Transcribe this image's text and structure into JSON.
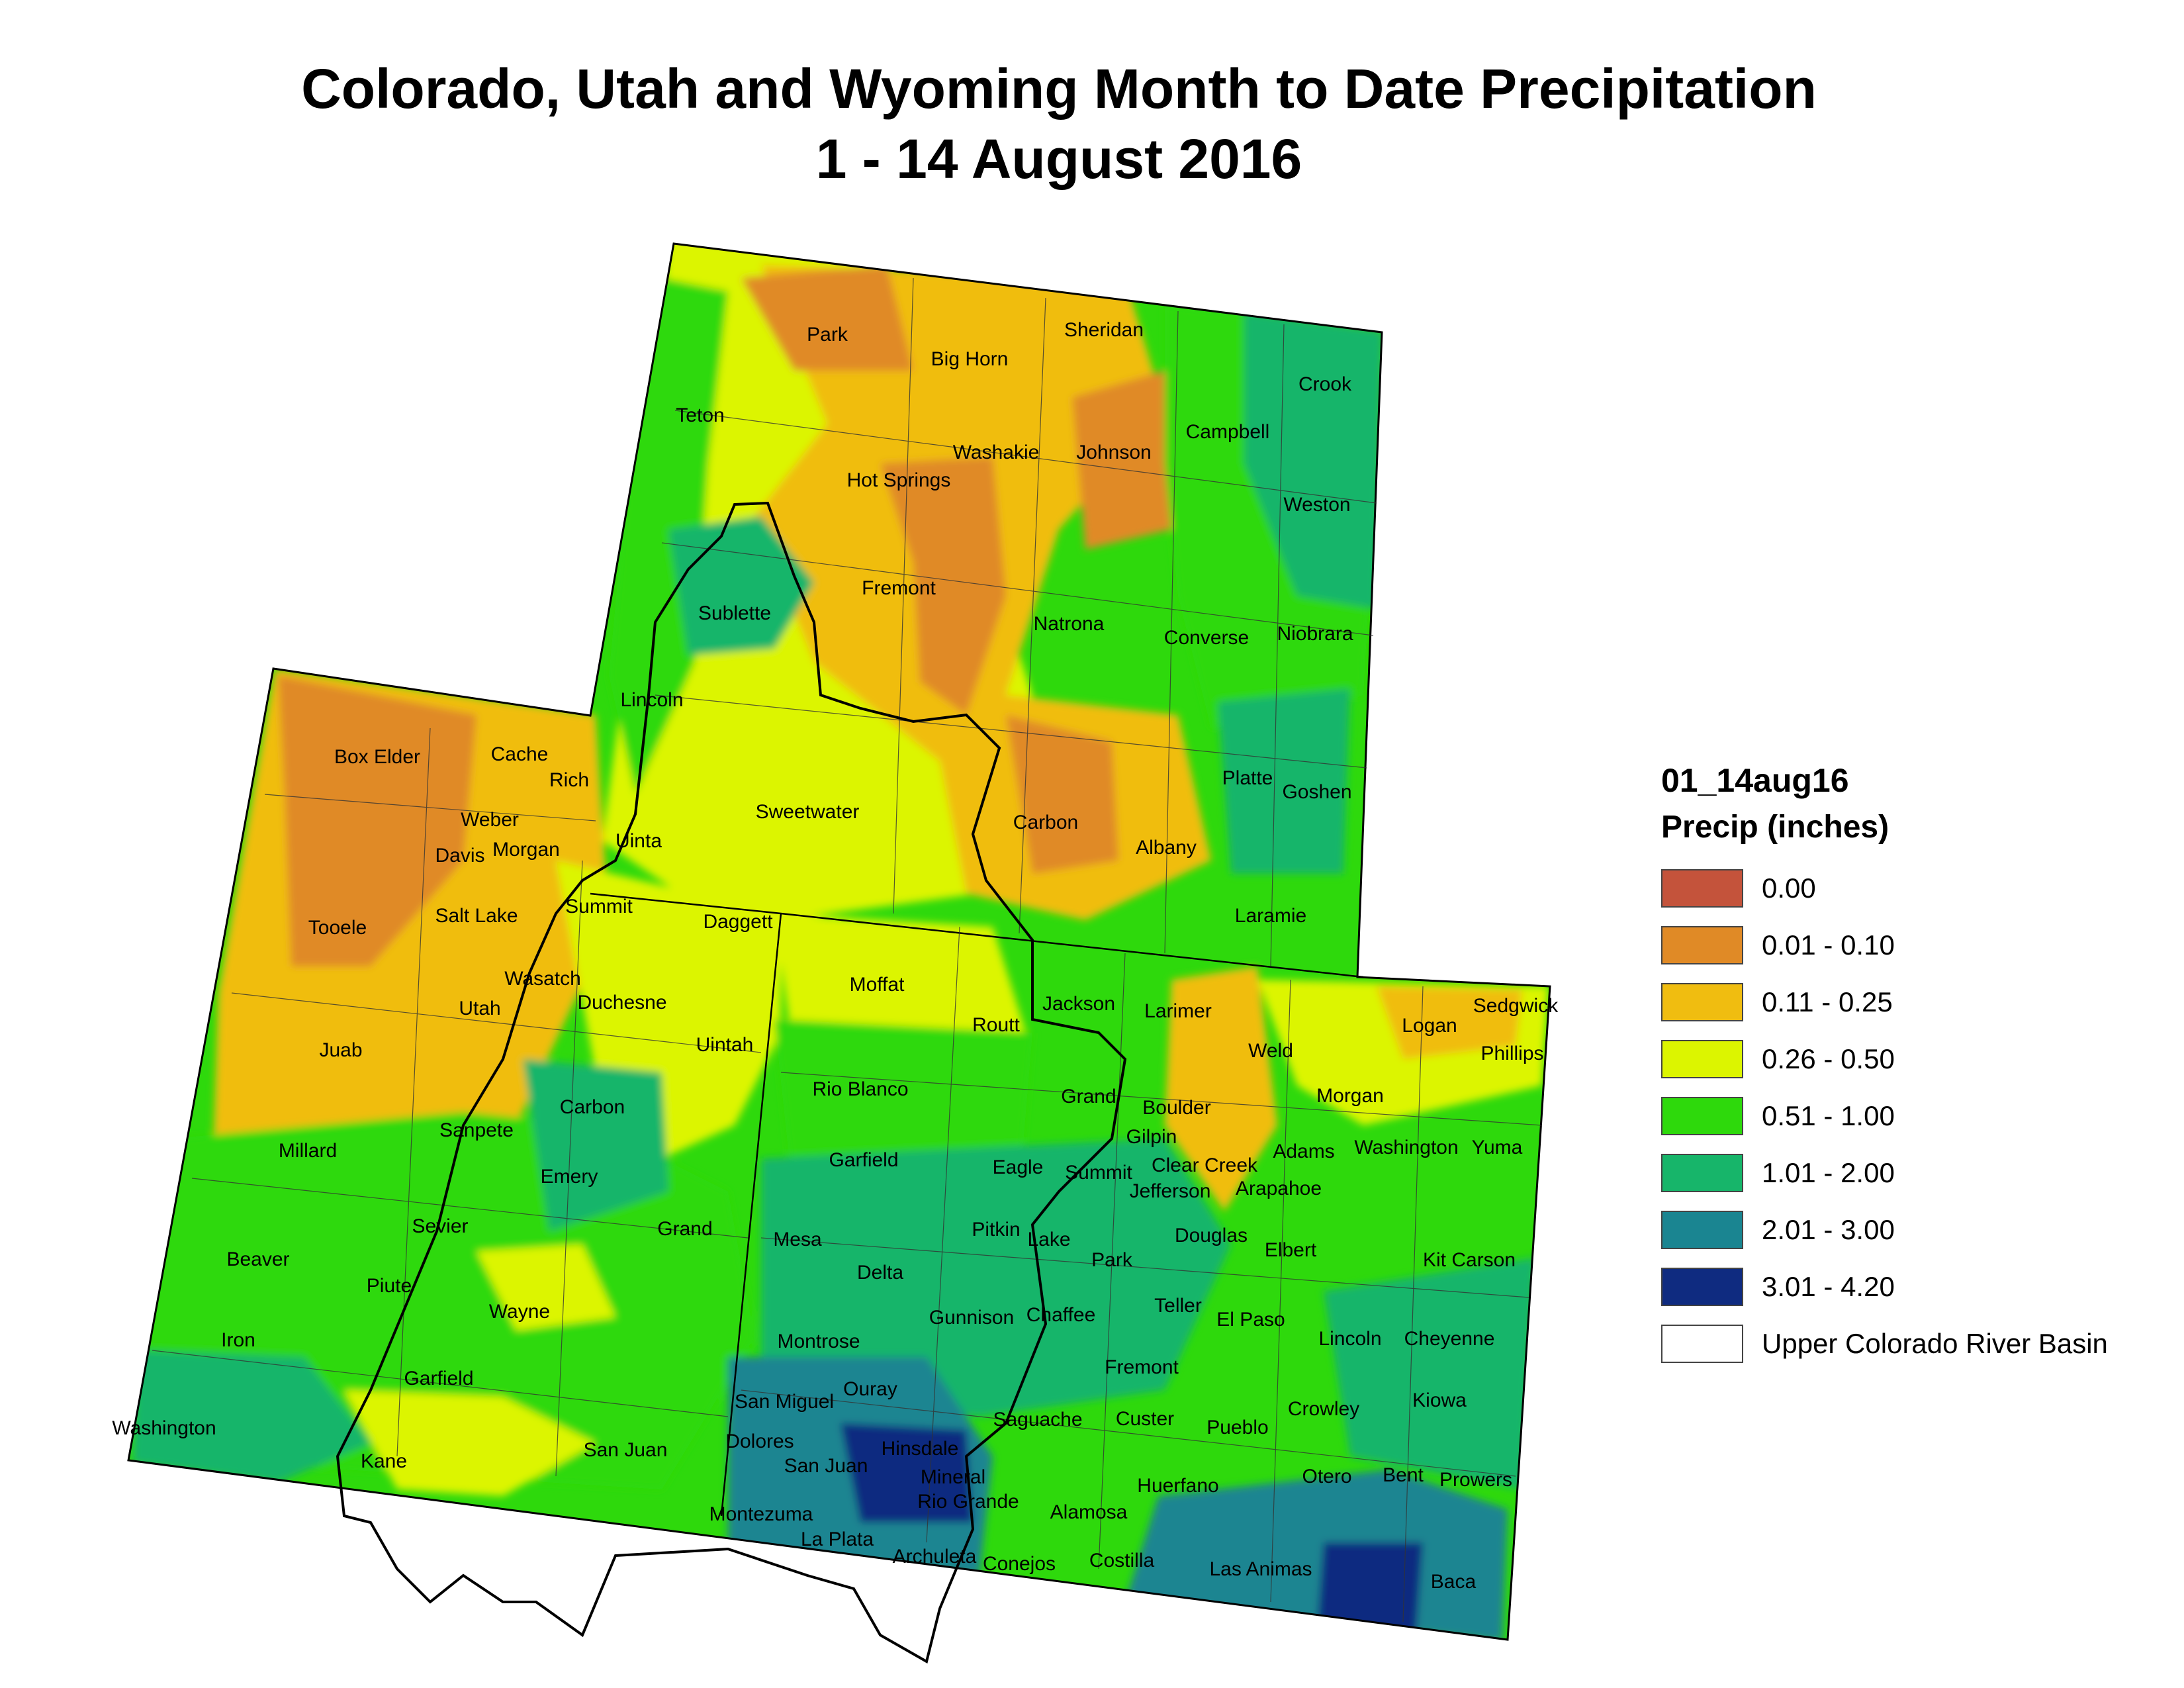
{
  "title": {
    "line1": "Colorado, Utah and Wyoming Month to Date Precipitation",
    "line2": "1 - 14 August 2016"
  },
  "legend": {
    "heading": "01_14aug16",
    "subheading": "Precip (inches)",
    "classes": [
      {
        "label": "0.00",
        "color": "#c4533b"
      },
      {
        "label": "0.01 - 0.10",
        "color": "#e08a26"
      },
      {
        "label": "0.11 - 0.25",
        "color": "#f0bd10"
      },
      {
        "label": "0.26 - 0.50",
        "color": "#dcf500"
      },
      {
        "label": "0.51 - 1.00",
        "color": "#2ed90c"
      },
      {
        "label": "1.01 - 2.00",
        "color": "#17b56a"
      },
      {
        "label": "2.01 - 3.00",
        "color": "#1a8591"
      },
      {
        "label": "3.01 - 4.20",
        "color": "#0f2b80"
      },
      {
        "label": "Upper Colorado River Basin",
        "color": "#ffffff"
      }
    ]
  },
  "counties": {
    "wyoming": [
      "Park",
      "Big Horn",
      "Sheridan",
      "Crook",
      "Teton",
      "Campbell",
      "Washakie",
      "Johnson",
      "Hot Springs",
      "Weston",
      "Fremont",
      "Sublette",
      "Natrona",
      "Converse",
      "Niobrara",
      "Lincoln",
      "Sweetwater",
      "Carbon",
      "Albany",
      "Platte",
      "Goshen",
      "Uinta",
      "Laramie"
    ],
    "utah": [
      "Box Elder",
      "Cache",
      "Rich",
      "Weber",
      "Davis",
      "Morgan",
      "Tooele",
      "Salt Lake",
      "Summit",
      "Daggett",
      "Wasatch",
      "Utah",
      "Duchesne",
      "Uintah",
      "Juab",
      "Carbon",
      "Millard",
      "Sanpete",
      "Emery",
      "Sevier",
      "Grand",
      "Beaver",
      "Piute",
      "Wayne",
      "Iron",
      "Garfield",
      "Washington",
      "Kane",
      "San Juan"
    ],
    "colorado": [
      "Moffat",
      "Jackson",
      "Larimer",
      "Logan",
      "Sedgwick",
      "Phillips",
      "Routt",
      "Weld",
      "Rio Blanco",
      "Grand",
      "Boulder",
      "Morgan",
      "Gilpin",
      "Adams",
      "Washington",
      "Yuma",
      "Garfield",
      "Eagle",
      "Summit",
      "Clear Creek",
      "Jefferson",
      "Arapahoe",
      "Pitkin",
      "Lake",
      "Mesa",
      "Douglas",
      "Elbert",
      "Park",
      "Kit Carson",
      "Delta",
      "Teller",
      "Gunnison",
      "Chaffee",
      "El Paso",
      "Lincoln",
      "Cheyenne",
      "Montrose",
      "Fremont",
      "Ouray",
      "San Miguel",
      "Crowley",
      "Kiowa",
      "Saguache",
      "Custer",
      "Pueblo",
      "Hinsdale",
      "Dolores",
      "San Juan",
      "Mineral",
      "Huerfano",
      "Otero",
      "Bent",
      "Prowers",
      "Rio Grande",
      "Alamosa",
      "Montezuma",
      "La Plata",
      "Archuleta",
      "Conejos",
      "Costilla",
      "Las Animas",
      "Baca"
    ]
  }
}
